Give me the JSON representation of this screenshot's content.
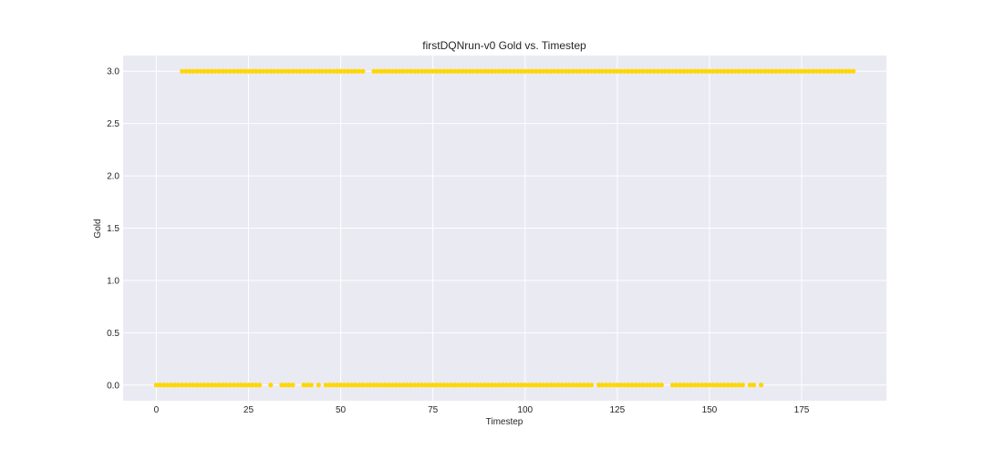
{
  "chart_data": {
    "type": "scatter",
    "title": "firstDQNrun-v0 Gold vs. Timestep",
    "xlabel": "Timestep",
    "ylabel": "Gold",
    "xlim": [
      -9,
      198
    ],
    "ylim": [
      -0.15,
      3.15
    ],
    "xticks": [
      0,
      25,
      50,
      75,
      100,
      125,
      150,
      175
    ],
    "yticks": [
      0.0,
      0.5,
      1.0,
      1.5,
      2.0,
      2.5,
      3.0
    ],
    "xtick_labels": [
      "0",
      "25",
      "50",
      "75",
      "100",
      "125",
      "150",
      "175"
    ],
    "ytick_labels": [
      "0.0",
      "0.5",
      "1.0",
      "1.5",
      "2.0",
      "2.5",
      "3.0"
    ],
    "grid": true,
    "colors": {
      "marker": "#ffd700",
      "background": "#eaeaf2",
      "grid": "#ffffff"
    },
    "series": [
      {
        "y": 3.0,
        "x_ranges": [
          [
            7,
            56
          ],
          [
            59,
            189
          ]
        ]
      },
      {
        "y": 0.0,
        "x_ranges": [
          [
            0,
            28
          ],
          [
            31,
            31
          ],
          [
            34,
            37
          ],
          [
            40,
            42
          ],
          [
            44,
            44
          ],
          [
            46,
            118
          ],
          [
            120,
            137
          ],
          [
            140,
            159
          ],
          [
            161,
            162
          ],
          [
            164,
            164
          ]
        ]
      }
    ]
  }
}
